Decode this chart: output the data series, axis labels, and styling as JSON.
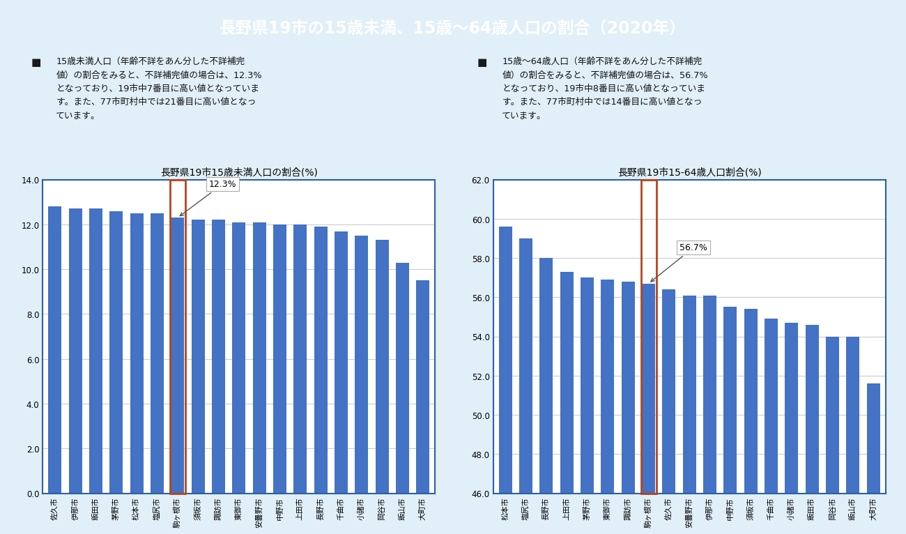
{
  "title": "長野県19市の15歳未満、15歳〜64歳人口の割合（2020年）",
  "title_bg": "#1a7bbf",
  "title_color": "#ffffff",
  "bg_color": "#e0eff8",
  "chart_bg": "#ffffff",
  "bar_color": "#4472c4",
  "highlight_color": "#b5451b",
  "bullet_color": "#1a1a1a",
  "text_left_bullet": "■",
  "text_left": "15歳未満人口（年齢不詳をあん分した不詳補完\n値）の割合をみると、不詳補完値の場合は、12.3%\nとなっており、19市中7番目に高い値となっていま\nす。また、77市町村中では21番目に高い値となっ\nています。",
  "text_right_bullet": "■",
  "text_right": "15歳〜64歳人口（年齢不詳をあん分した不詳補完\n値）の割合をみると、不詳補完値の場合は、56.7%\nとなっており、19市中8番目に高い値となっていま\nす。また、77市町村中では14番目に高い値となっ\nています。",
  "chart1_title": "長野県19市15歳未満人口の割合(%)",
  "chart1_categories": [
    "佐久市",
    "伊那市",
    "飯田市",
    "茅野市",
    "松本市",
    "塩尻市",
    "駒ヶ根市",
    "須坂市",
    "諏訪市",
    "東御市",
    "安曇野市",
    "中野市",
    "上田市",
    "長野市",
    "千曲市",
    "小諸市",
    "岡谷市",
    "飯山市",
    "大町市"
  ],
  "chart1_values": [
    12.8,
    12.7,
    12.7,
    12.6,
    12.5,
    12.5,
    12.3,
    12.2,
    12.2,
    12.1,
    12.1,
    12.0,
    12.0,
    11.9,
    11.7,
    11.5,
    11.3,
    10.3,
    9.5
  ],
  "chart1_highlight_idx": 6,
  "chart1_annotation": "12.3%",
  "chart1_ylim": [
    0.0,
    14.0
  ],
  "chart1_yticks": [
    0.0,
    2.0,
    4.0,
    6.0,
    8.0,
    10.0,
    12.0,
    14.0
  ],
  "chart2_title": "長野県19市15-64歳人口割合(%)",
  "chart2_categories": [
    "松本市",
    "塩尻市",
    "長野市",
    "上田市",
    "茅野市",
    "東御市",
    "諏訪市",
    "駒ヶ根市",
    "佐久市",
    "安曇野市",
    "伊那市",
    "中野市",
    "須坂市",
    "千曲市",
    "小諸市",
    "飯田市",
    "岡谷市",
    "飯山市",
    "大町市"
  ],
  "chart2_values": [
    59.6,
    59.0,
    58.0,
    57.3,
    57.0,
    56.9,
    56.8,
    56.7,
    56.4,
    56.1,
    56.1,
    55.5,
    55.4,
    54.9,
    54.7,
    54.6,
    54.0,
    54.0,
    51.6
  ],
  "chart2_highlight_idx": 7,
  "chart2_annotation": "56.7%",
  "chart2_ylim": [
    46.0,
    62.0
  ],
  "chart2_yticks": [
    46.0,
    48.0,
    50.0,
    52.0,
    54.0,
    56.0,
    58.0,
    60.0,
    62.0
  ],
  "border_color": "#2b5fa8",
  "grid_color": "#cccccc",
  "spine_color": "#2b5fa8"
}
